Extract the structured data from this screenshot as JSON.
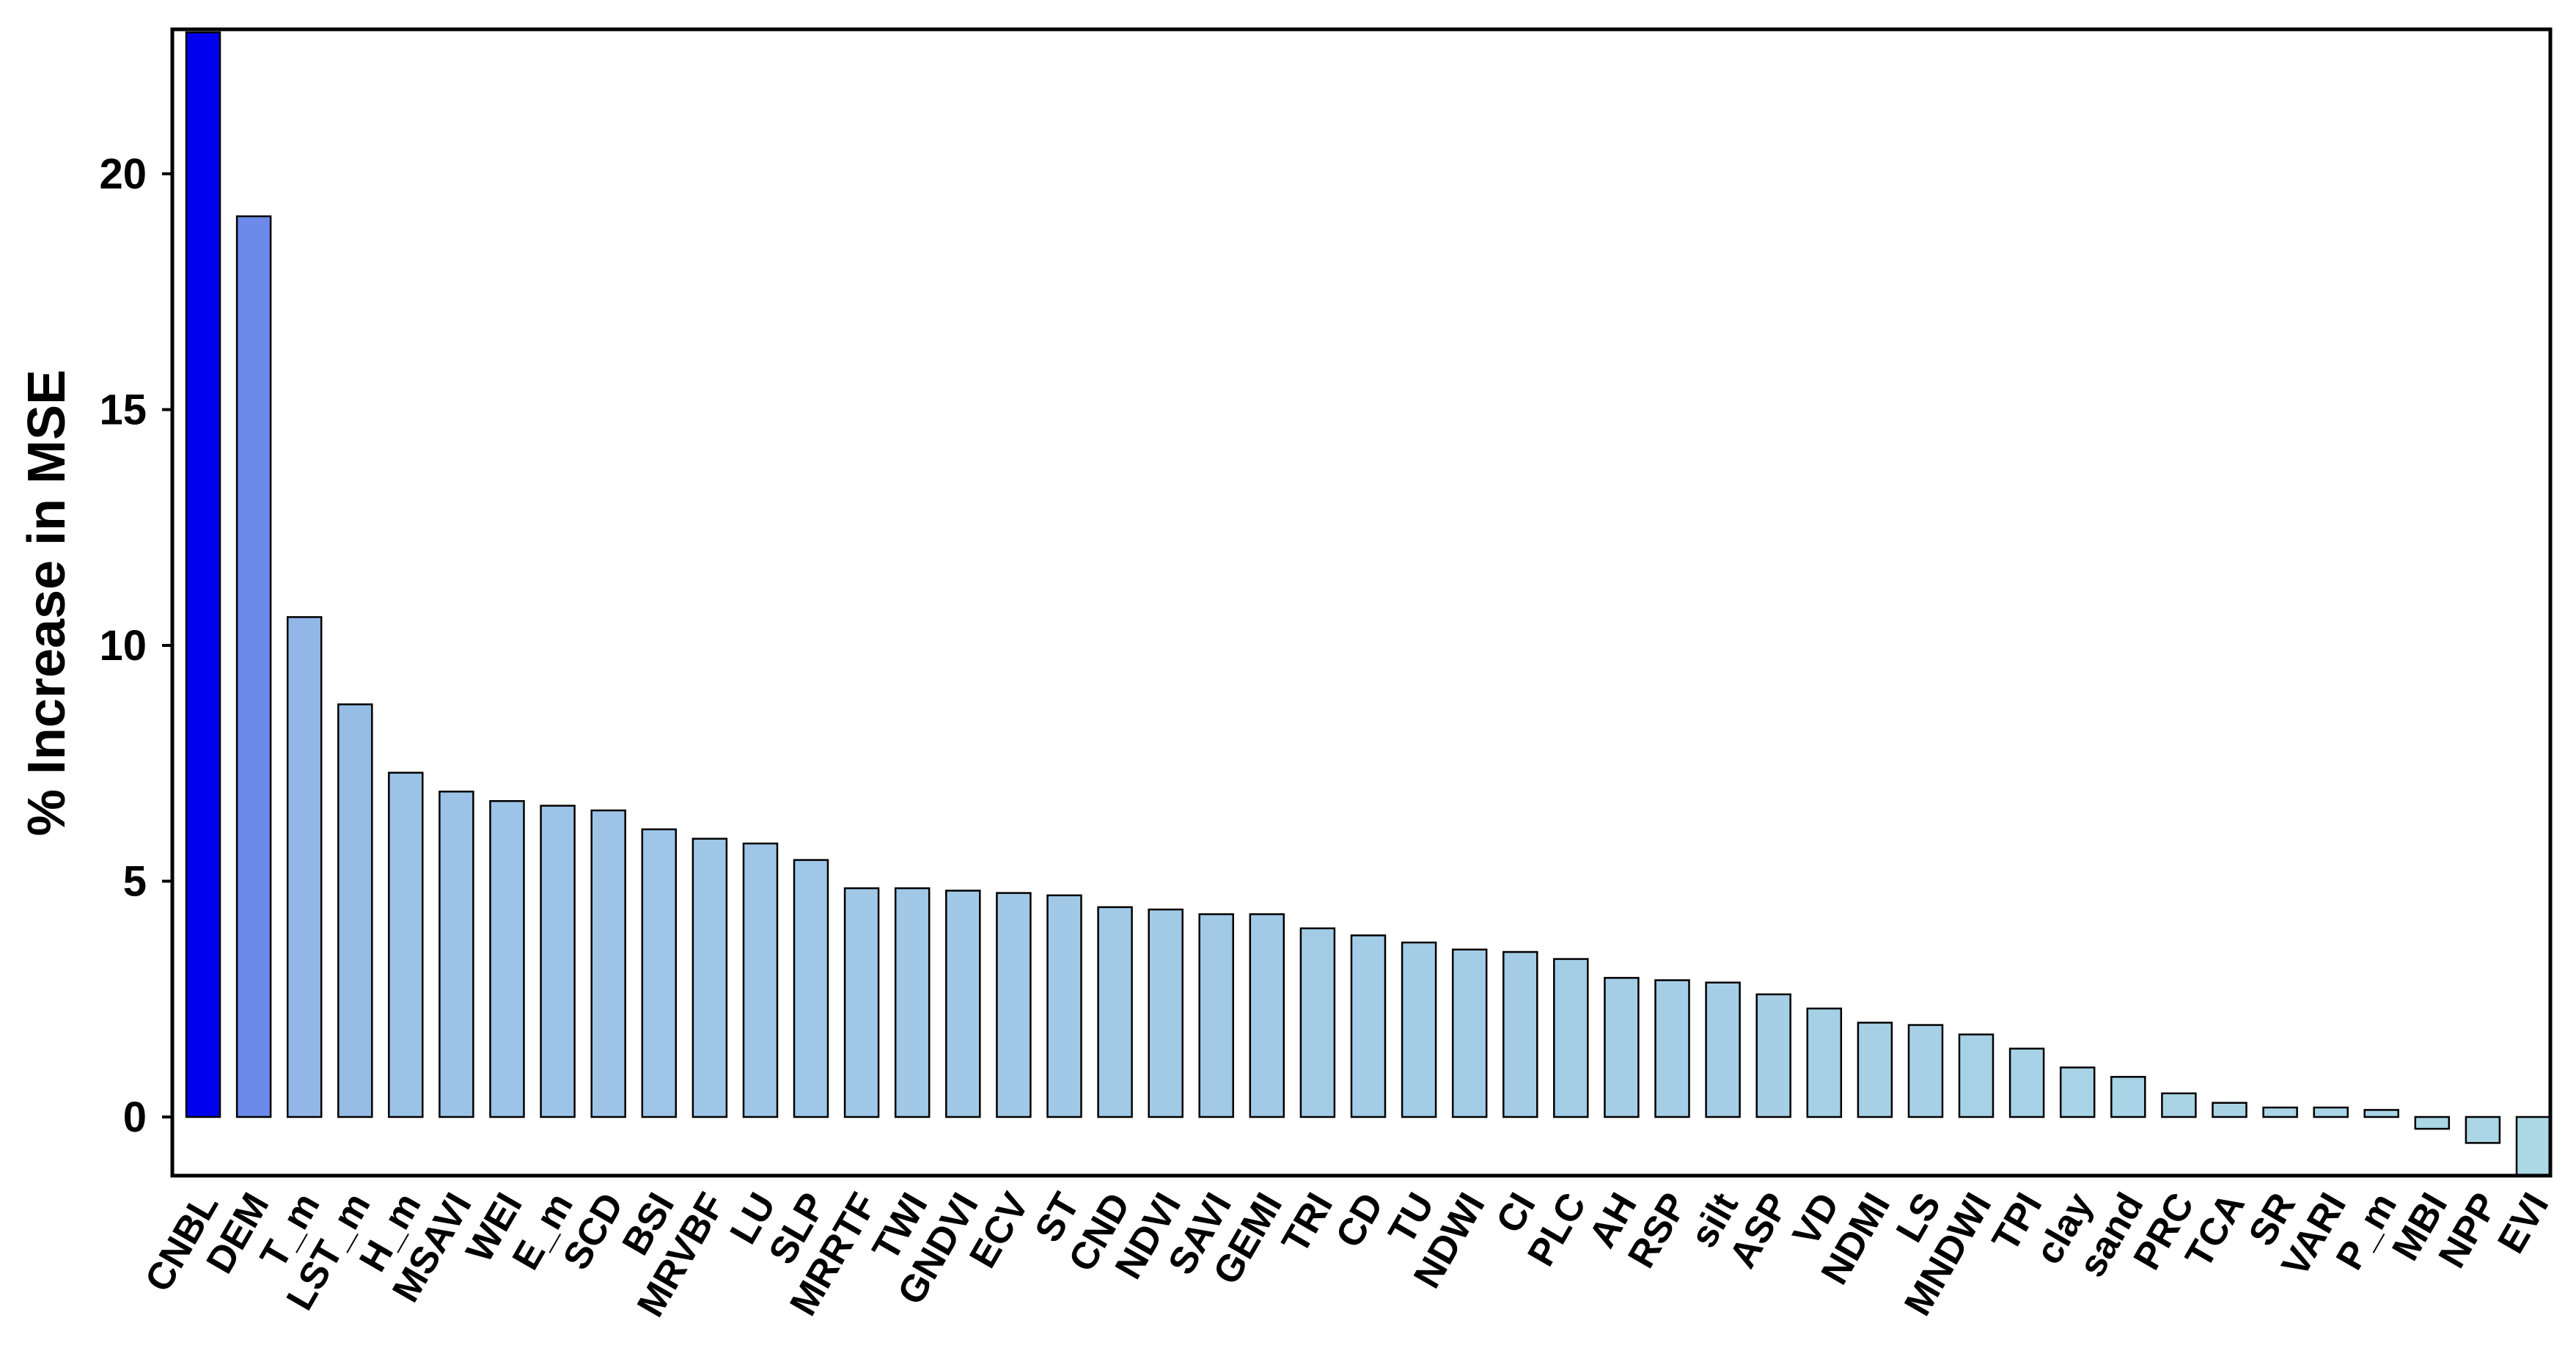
{
  "chart_data": {
    "type": "bar",
    "ylabel": "% Increase in MSE",
    "xlabel": "",
    "ylim": [
      -1.3,
      23
    ],
    "yticks": [
      0,
      5,
      10,
      15,
      20
    ],
    "grid": false,
    "legend": "none",
    "categories": [
      "CNBL",
      "DEM",
      "T_m",
      "LST_m",
      "H_m",
      "MSAVI",
      "WEI",
      "E_m",
      "SCD",
      "BSI",
      "MRVBF",
      "LU",
      "SLP",
      "MRRTF",
      "TWI",
      "GNDVI",
      "ECV",
      "ST",
      "CND",
      "NDVI",
      "SAVI",
      "GEMI",
      "TRI",
      "CD",
      "TU",
      "NDWI",
      "CI",
      "PLC",
      "AH",
      "RSP",
      "silt",
      "ASP",
      "VD",
      "NDMI",
      "LS",
      "MNDWI",
      "TPI",
      "clay",
      "sand",
      "PRC",
      "TCA",
      "SR",
      "VARI",
      "P_m",
      "MBI",
      "NPP",
      "EVI"
    ],
    "values": [
      23.0,
      19.1,
      10.6,
      8.75,
      7.3,
      6.9,
      6.7,
      6.6,
      6.5,
      6.1,
      5.9,
      5.8,
      5.45,
      4.85,
      4.85,
      4.8,
      4.75,
      4.7,
      4.45,
      4.4,
      4.3,
      4.3,
      4.0,
      3.85,
      3.7,
      3.55,
      3.5,
      3.35,
      2.95,
      2.9,
      2.85,
      2.6,
      2.3,
      2.0,
      1.95,
      1.75,
      1.45,
      1.05,
      0.85,
      0.5,
      0.3,
      0.2,
      0.2,
      0.15,
      -0.25,
      -0.55,
      -1.3
    ],
    "colors": {
      "start": "#0000ee",
      "end": "#add8e6"
    }
  }
}
